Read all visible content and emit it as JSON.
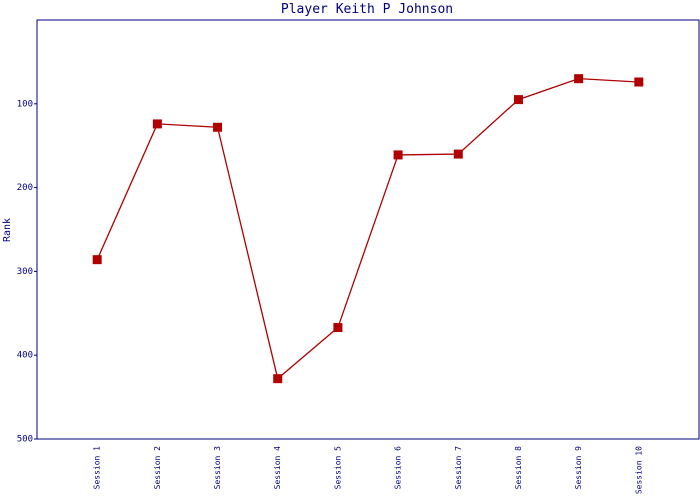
{
  "chart_data": {
    "type": "line",
    "title": "Player Keith P Johnson",
    "y_label": "Rank",
    "categories": [
      "Session 1",
      "Session 2",
      "Session 3",
      "Session 4",
      "Session 5",
      "Session 6",
      "Session 7",
      "Session 8",
      "Session 9",
      "Session 10"
    ],
    "series": [
      {
        "name": "Rank",
        "color": "#b00000",
        "values": [
          286,
          124,
          128,
          428,
          367,
          161,
          160,
          95,
          70,
          74
        ]
      }
    ],
    "ylim": [
      0,
      500
    ],
    "yticks": [
      100,
      200,
      300,
      400,
      500
    ],
    "y_inverted": true,
    "grid": false
  }
}
